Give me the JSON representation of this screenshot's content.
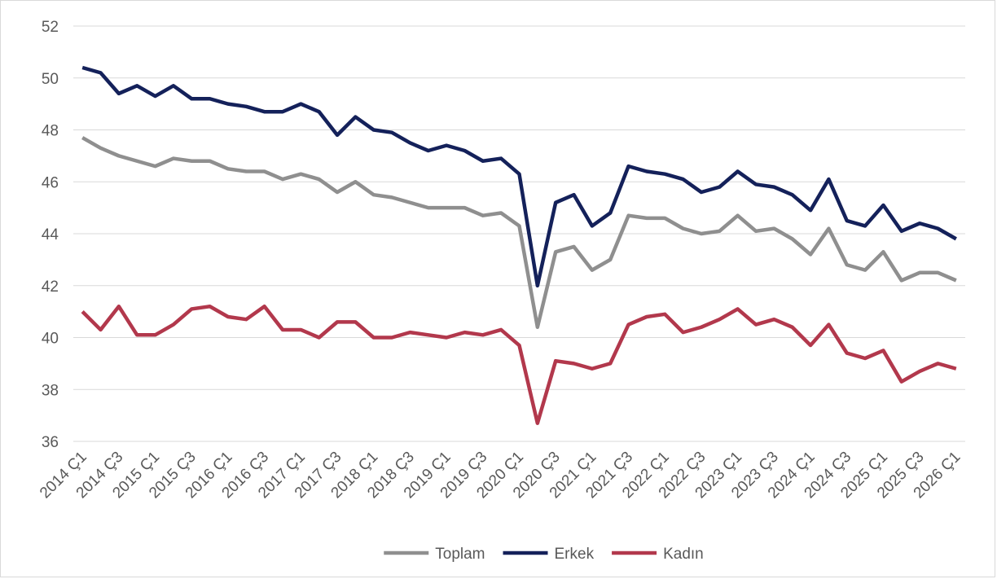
{
  "chart_data": {
    "type": "line",
    "categories": [
      "2014 Ç1",
      null,
      "2014 Ç3",
      null,
      "2015 Ç1",
      null,
      "2015 Ç3",
      null,
      "2016 Ç1",
      null,
      "2016 Ç3",
      null,
      "2017 Ç1",
      null,
      "2017 Ç3",
      null,
      "2018 Ç1",
      null,
      "2018 Ç3",
      null,
      "2019 Ç1",
      null,
      "2019 Ç3",
      null,
      "2020 Ç1",
      null,
      "2020 Ç3",
      null,
      "2021 Ç1",
      null,
      "2021 Ç3",
      null,
      "2022 Ç1",
      null,
      "2022 Ç3",
      null,
      "2023 Ç1",
      null,
      "2023 Ç3",
      null,
      "2024 Ç1",
      null,
      "2024 Ç3",
      null,
      "2025 Ç1",
      null,
      "2025 Ç3",
      null,
      "2026 Ç1"
    ],
    "series": [
      {
        "name": "Toplam",
        "color": "#8f8f8f",
        "values": [
          47.7,
          47.3,
          47.0,
          46.8,
          46.6,
          46.9,
          46.8,
          46.8,
          46.5,
          46.4,
          46.4,
          46.1,
          46.3,
          46.1,
          45.6,
          46.0,
          45.5,
          45.4,
          45.2,
          45.0,
          45.0,
          45.0,
          44.7,
          44.8,
          44.3,
          40.4,
          43.3,
          43.5,
          42.6,
          43.0,
          44.7,
          44.6,
          44.6,
          44.2,
          44.0,
          44.1,
          44.7,
          44.1,
          44.2,
          43.8,
          43.2,
          44.2,
          42.8,
          42.6,
          43.3,
          42.2,
          42.5,
          42.5,
          42.2
        ]
      },
      {
        "name": "Erkek",
        "color": "#14215a",
        "values": [
          50.4,
          50.2,
          49.4,
          49.7,
          49.3,
          49.7,
          49.2,
          49.2,
          49.0,
          48.9,
          48.7,
          48.7,
          49.0,
          48.7,
          47.8,
          48.5,
          48.0,
          47.9,
          47.5,
          47.2,
          47.4,
          47.2,
          46.8,
          46.9,
          46.3,
          42.0,
          45.2,
          45.5,
          44.3,
          44.8,
          46.6,
          46.4,
          46.3,
          46.1,
          45.6,
          45.8,
          46.4,
          45.9,
          45.8,
          45.5,
          44.9,
          46.1,
          44.5,
          44.3,
          45.1,
          44.1,
          44.4,
          44.2,
          43.8
        ]
      },
      {
        "name": "Kadın",
        "color": "#b2384c",
        "values": [
          41.0,
          40.3,
          41.2,
          40.1,
          40.1,
          40.5,
          41.1,
          41.2,
          40.8,
          40.7,
          41.2,
          40.3,
          40.3,
          40.0,
          40.6,
          40.6,
          40.0,
          40.0,
          40.2,
          40.1,
          40.0,
          40.2,
          40.1,
          40.3,
          39.7,
          36.7,
          39.1,
          39.0,
          38.8,
          39.0,
          40.5,
          40.8,
          40.9,
          40.2,
          40.4,
          40.7,
          41.1,
          40.5,
          40.7,
          40.4,
          39.7,
          40.5,
          39.4,
          39.2,
          39.5,
          38.3,
          38.7,
          39.0,
          38.8
        ]
      }
    ],
    "ylim": [
      36,
      52
    ],
    "yticks": [
      36,
      38,
      40,
      42,
      44,
      46,
      48,
      50,
      52
    ],
    "grid": true,
    "legend": "bottom"
  }
}
